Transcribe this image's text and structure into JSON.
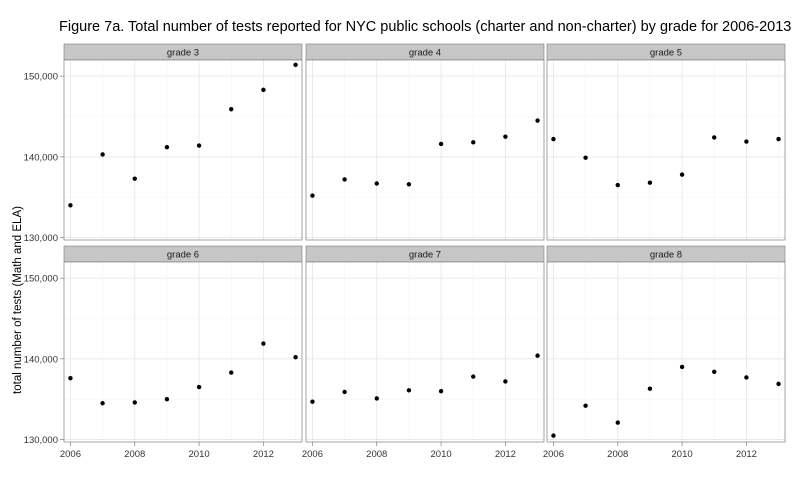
{
  "chart_data": {
    "type": "scatter",
    "title": "Figure 7a. Total number of tests reported for NYC public schools (charter and non-charter) by grade for 2006-2013",
    "xlabel": "",
    "ylabel": "total number of tests (Math and ELA)",
    "x": [
      2006,
      2007,
      2008,
      2009,
      2010,
      2011,
      2012,
      2013
    ],
    "xlim": [
      2005.8,
      2013.2
    ],
    "ylim": [
      129700,
      152000
    ],
    "x_ticks": [
      2006,
      2008,
      2010,
      2012
    ],
    "x_tick_labels": [
      "2006",
      "2008",
      "2010",
      "2012"
    ],
    "y_ticks": [
      130000,
      140000,
      150000
    ],
    "y_tick_labels": [
      "130,000",
      "140,000",
      "150,000"
    ],
    "grid": true,
    "layout": "facets 2 rows x 3 columns",
    "panels": [
      {
        "strip": "grade 3",
        "values": [
          134000,
          140300,
          137300,
          141200,
          141400,
          145900,
          148300,
          151400
        ]
      },
      {
        "strip": "grade 4",
        "values": [
          135200,
          137200,
          136700,
          136600,
          141600,
          141800,
          142500,
          144500
        ]
      },
      {
        "strip": "grade 5",
        "values": [
          142200,
          139900,
          136500,
          136800,
          137800,
          142400,
          141900,
          142200
        ]
      },
      {
        "strip": "grade 6",
        "values": [
          137600,
          134500,
          134600,
          135000,
          136500,
          138300,
          141900,
          140200
        ]
      },
      {
        "strip": "grade 7",
        "values": [
          134700,
          135900,
          135100,
          136100,
          136000,
          137800,
          137200,
          140400
        ]
      },
      {
        "strip": "grade 8",
        "values": [
          130500,
          134200,
          132100,
          136300,
          139000,
          138400,
          137700,
          136900
        ]
      }
    ]
  }
}
